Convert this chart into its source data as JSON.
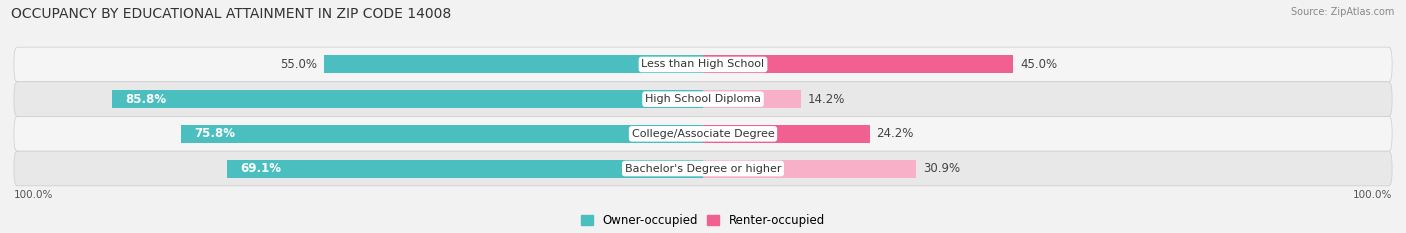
{
  "title": "OCCUPANCY BY EDUCATIONAL ATTAINMENT IN ZIP CODE 14008",
  "source": "Source: ZipAtlas.com",
  "categories": [
    "Less than High School",
    "High School Diploma",
    "College/Associate Degree",
    "Bachelor's Degree or higher"
  ],
  "owner_pct": [
    55.0,
    85.8,
    75.8,
    69.1
  ],
  "renter_pct": [
    45.0,
    14.2,
    24.2,
    30.9
  ],
  "owner_color": "#4bbfbf",
  "renter_color_bright": "#f06090",
  "renter_color_light": "#f8afc8",
  "bg_color": "#f2f2f2",
  "row_colors": [
    "#f5f5f5",
    "#e8e8e8",
    "#f5f5f5",
    "#e8e8e8"
  ],
  "title_fontsize": 10,
  "label_fontsize": 8.5,
  "legend_fontsize": 8.5
}
